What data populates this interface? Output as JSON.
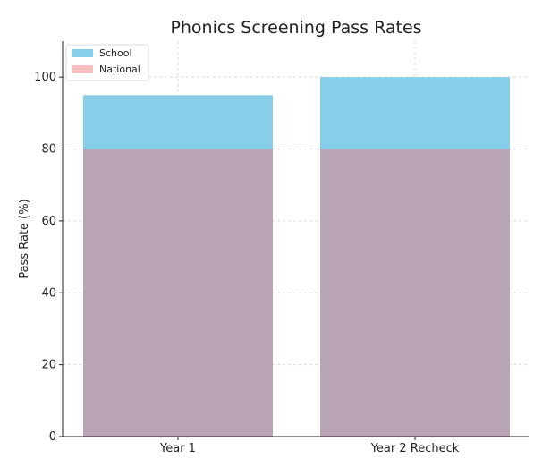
{
  "chart_data": {
    "type": "bar",
    "title": "Phonics Screening Pass Rates",
    "xlabel": "",
    "ylabel": "Pass Rate (%)",
    "categories": [
      "Year 1",
      "Year 2 Recheck"
    ],
    "series": [
      {
        "name": "School",
        "values": [
          95,
          100
        ],
        "color": "#87CEEB"
      },
      {
        "name": "National",
        "values": [
          80,
          80
        ],
        "color": "#F08080",
        "opacity": 0.5
      }
    ],
    "ylim": [
      0,
      110
    ],
    "yticks": [
      0,
      20,
      40,
      60,
      80,
      100
    ],
    "grid": true,
    "legend_position": "top-left",
    "overlay_color": "#B9A4B4"
  }
}
